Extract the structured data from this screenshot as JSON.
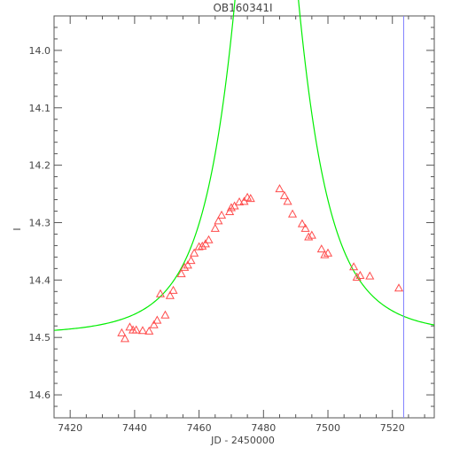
{
  "chart_data": {
    "type": "scatter",
    "title": "OB160341I",
    "xlabel": "JD - 2450000",
    "ylabel": "I",
    "xlim": [
      7415,
      7533
    ],
    "ylim": [
      14.64,
      13.94
    ],
    "y_inverted": true,
    "grid": false,
    "x_ticks": [
      7420,
      7440,
      7460,
      7480,
      7500,
      7520
    ],
    "y_ticks": [
      14.0,
      14.1,
      14.2,
      14.3,
      14.4,
      14.5,
      14.6
    ],
    "y_tick_labels": [
      "14.0",
      "14.1",
      "14.2",
      "14.3",
      "14.4",
      "14.5",
      "14.6"
    ],
    "observations": {
      "marker": "triangle",
      "color": "#ff4d4d",
      "points": [
        [
          7436.0,
          14.492
        ],
        [
          7437.0,
          14.502
        ],
        [
          7438.5,
          14.482
        ],
        [
          7439.5,
          14.487
        ],
        [
          7440.5,
          14.487
        ],
        [
          7442.5,
          14.488
        ],
        [
          7444.5,
          14.489
        ],
        [
          7446.0,
          14.478
        ],
        [
          7447.0,
          14.47
        ],
        [
          7448.0,
          14.424
        ],
        [
          7449.5,
          14.461
        ],
        [
          7451.0,
          14.427
        ],
        [
          7452.0,
          14.418
        ],
        [
          7454.5,
          14.389
        ],
        [
          7455.5,
          14.378
        ],
        [
          7456.5,
          14.374
        ],
        [
          7457.5,
          14.366
        ],
        [
          7458.5,
          14.353
        ],
        [
          7460.0,
          14.342
        ],
        [
          7461.0,
          14.341
        ],
        [
          7462.0,
          14.337
        ],
        [
          7463.0,
          14.33
        ],
        [
          7465.0,
          14.31
        ],
        [
          7466.0,
          14.297
        ],
        [
          7467.0,
          14.287
        ],
        [
          7469.5,
          14.281
        ],
        [
          7470.0,
          14.274
        ],
        [
          7471.0,
          14.271
        ],
        [
          7472.5,
          14.264
        ],
        [
          7474.0,
          14.263
        ],
        [
          7475.0,
          14.256
        ],
        [
          7476.0,
          14.258
        ],
        [
          7485.0,
          14.241
        ],
        [
          7486.5,
          14.253
        ],
        [
          7487.5,
          14.263
        ],
        [
          7489.0,
          14.285
        ],
        [
          7492.0,
          14.302
        ],
        [
          7493.0,
          14.31
        ],
        [
          7494.0,
          14.325
        ],
        [
          7495.0,
          14.322
        ],
        [
          7498.0,
          14.346
        ],
        [
          7499.0,
          14.356
        ],
        [
          7500.0,
          14.353
        ],
        [
          7508.0,
          14.377
        ],
        [
          7509.0,
          14.395
        ],
        [
          7510.0,
          14.392
        ],
        [
          7513.0,
          14.393
        ],
        [
          7522.0,
          14.414
        ]
      ]
    },
    "model": {
      "type": "line",
      "color": "#00ee00",
      "base_mag": 14.495,
      "t0": 7481,
      "tE": 17,
      "u0": 0.36
    },
    "vertical_line": {
      "x": 7523.5,
      "color": "#8080ff"
    }
  }
}
